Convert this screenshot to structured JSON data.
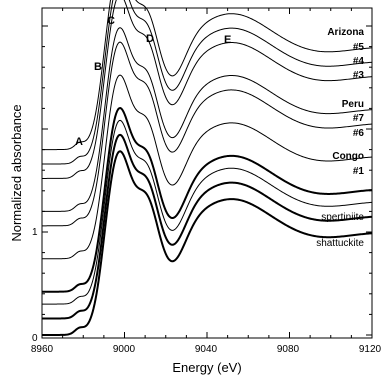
{
  "chart_data": {
    "type": "line",
    "xlabel": "Energy (eV)",
    "ylabel": "Normalized absorbance",
    "xlim": [
      8960,
      9120
    ],
    "xticks": [
      8960,
      9000,
      9040,
      9080,
      9120
    ],
    "yticks": [
      0,
      1
    ],
    "grid": false,
    "peak_labels": [
      {
        "text": "A",
        "energy": 8978
      },
      {
        "text": "B",
        "energy": 8990
      },
      {
        "text": "C",
        "energy": 8996
      },
      {
        "text": "D",
        "energy": 9010
      },
      {
        "text": "E",
        "energy": 9050
      }
    ],
    "group_labels": [
      "Arizona",
      "Peru",
      "Congo"
    ],
    "series": [
      {
        "name": "#5",
        "offset": 1.8,
        "bold": false
      },
      {
        "name": "#4",
        "offset": 1.66,
        "bold": false
      },
      {
        "name": "#3",
        "offset": 1.52,
        "bold": false
      },
      {
        "name": "#7",
        "offset": 1.2,
        "bold": false
      },
      {
        "name": "#6",
        "offset": 1.06,
        "bold": false
      },
      {
        "name": "#1",
        "offset": 0.74,
        "bold": false
      },
      {
        "name": "spertiniite",
        "offset": 0.42,
        "bold": true
      },
      {
        "name": "",
        "offset": 0.3,
        "bold": false
      },
      {
        "name": "shattuckite",
        "offset": 0.16,
        "bold": true
      },
      {
        "name": "",
        "offset": 0.0,
        "bold": true
      }
    ]
  }
}
